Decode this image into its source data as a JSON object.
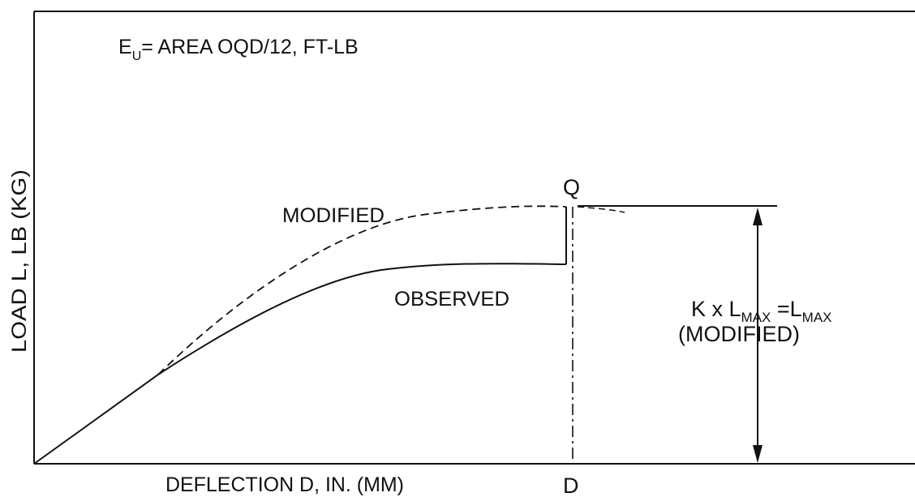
{
  "formula": {
    "e": "E",
    "sub": "U",
    "rest": "= AREA OQD/12, FT-LB"
  },
  "axes": {
    "ylabel": "LOAD L,  LB (KG)",
    "xlabel": "DEFLECTION D, IN. (MM)"
  },
  "points": {
    "q": "Q",
    "d": "D"
  },
  "curves": {
    "modified": "MODIFIED",
    "observed": "OBSERVED"
  },
  "annotation": {
    "k": "K x L",
    "sub1": "MAX",
    "eq": " =L",
    "sub2": "MAX",
    "line2": "(MODIFIED)"
  },
  "colors": {
    "ink": "#111111",
    "background": "#ffffff"
  }
}
